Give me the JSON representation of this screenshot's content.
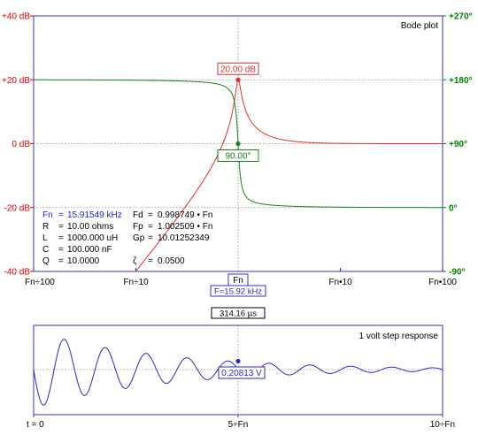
{
  "colors": {
    "axis_left": "#e00000",
    "axis_right": "#008000",
    "frame_blue": "#3333cc",
    "magnitude": "#e03030",
    "phase": "#1a801a",
    "step": "#2a2ac0",
    "grid": "#8a8a8a"
  },
  "bode": {
    "title": "Bode plot",
    "left_ticks": [
      "+40 dB",
      "+20 dB",
      "0 dB",
      "-20 dB",
      "-40 dB"
    ],
    "right_ticks": [
      "+270°",
      "+180°",
      "+90°",
      "0°",
      "-90°"
    ],
    "x_ticks": [
      "Fn÷100",
      "Fn÷10",
      "Fn",
      "Fn•10",
      "Fn•100"
    ],
    "fn_readout": "F=15.92 kHz",
    "marker_mag": "20.00 dB",
    "marker_phase": "90.00°",
    "params": {
      "fn_label": "Fn",
      "fn_value": "15.91549 kHz",
      "r_label": "R",
      "r_value": "10.00 ohms",
      "l_label": "L",
      "l_value": "1000.000 uH",
      "c_label": "C",
      "c_value": "100.000 nF",
      "q_label": "Q",
      "q_value": "10.0000",
      "fd_label": "Fd",
      "fd_value": "0.998749 • Fn",
      "fp_label": "Fp",
      "fp_value": "1.002509 • Fn",
      "gp_label": "Gp",
      "gp_value": "10.01252349",
      "zeta_label": "ζ",
      "zeta_value": "0.0500"
    }
  },
  "step_plot": {
    "title": "1 volt step response",
    "time_marker": "314.16 µs",
    "value_marker": "0.20813 V",
    "x_ticks": [
      "t = 0",
      "5÷Fn",
      "10÷Fn"
    ]
  },
  "chart_data": [
    {
      "type": "line",
      "title": "Bode plot",
      "x_scale": "log",
      "x_unit": "frequency relative to Fn",
      "xlim": [
        0.01,
        100
      ],
      "ylim_left": [
        -40,
        40
      ],
      "ylim_right": [
        -90,
        270
      ],
      "grid": true,
      "natural_frequency_khz": 15.91549,
      "damping_ratio": 0.05,
      "Q": 10.0,
      "series": [
        {
          "axis": "left",
          "unit": "dB",
          "x": [
            0.1,
            0.2,
            0.3,
            0.5,
            0.7,
            0.9,
            1.0,
            1.1,
            1.3,
            1.5,
            2,
            3,
            5,
            10,
            100
          ],
          "values": [
            -40.0,
            -27.9,
            -20.6,
            -11.4,
            -5.4,
            0.6,
            20.0,
            5.1,
            -0.7,
            -2.4,
            -3.6,
            -3.9,
            -4.0,
            -4.0,
            -4.0
          ]
        },
        {
          "axis": "right",
          "unit": "degrees",
          "x": [
            0.01,
            0.1,
            0.3,
            0.5,
            0.7,
            0.9,
            1.0,
            1.1,
            1.3,
            1.5,
            2,
            5,
            10,
            100
          ],
          "values": [
            180.0,
            179.4,
            178.1,
            176.2,
            172.2,
            154.7,
            90.0,
            27.6,
            9.9,
            6.9,
            3.8,
            1.2,
            0.6,
            0.06
          ]
        }
      ],
      "marker": {
        "x": 1.0,
        "magnitude_db": 20.0,
        "phase_deg": 90.0
      }
    },
    {
      "type": "line",
      "title": "1 volt step response",
      "x_unit": "periods of 1/Fn",
      "xlim": [
        0,
        10
      ],
      "ylim": [
        -1.15,
        1.15
      ],
      "series": [
        {
          "unit": "V",
          "x": [
            0,
            0.5,
            1.0,
            1.5,
            2.0,
            2.5,
            3.0,
            4.0,
            5.0,
            6.0,
            8.0,
            10.0
          ],
          "values": [
            0.0,
            -0.85,
            0.73,
            -0.63,
            0.53,
            -0.45,
            0.39,
            0.28,
            0.208,
            0.15,
            0.081,
            0.043
          ]
        }
      ],
      "marker": {
        "time_us": 314.16,
        "value_v": 0.20813
      }
    }
  ]
}
